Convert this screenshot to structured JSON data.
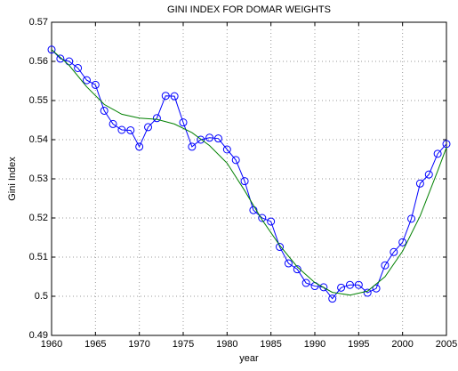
{
  "chart_data": {
    "type": "line",
    "title": "GINI INDEX FOR DOMAR WEIGHTS",
    "x_label": "year",
    "y_label": "Gini Index",
    "x": [
      1960,
      1961,
      1962,
      1963,
      1964,
      1965,
      1966,
      1967,
      1968,
      1969,
      1970,
      1971,
      1972,
      1973,
      1974,
      1975,
      1976,
      1977,
      1978,
      1979,
      1980,
      1981,
      1982,
      1983,
      1984,
      1985,
      1986,
      1987,
      1988,
      1989,
      1990,
      1991,
      1992,
      1993,
      1994,
      1995,
      1996,
      1997,
      1998,
      1999,
      2000,
      2001,
      2002,
      2003,
      2004,
      2005
    ],
    "series": [
      {
        "color": "#0000ff",
        "marker": "circle",
        "values": [
          0.563,
          0.5607,
          0.56,
          0.5583,
          0.5552,
          0.554,
          0.5474,
          0.544,
          0.5425,
          0.5424,
          0.5382,
          0.5432,
          0.5455,
          0.5512,
          0.5511,
          0.5444,
          0.5382,
          0.54,
          0.5405,
          0.5403,
          0.5375,
          0.5348,
          0.5294,
          0.522,
          0.52,
          0.5191,
          0.5126,
          0.5084,
          0.5069,
          0.5034,
          0.5026,
          0.5023,
          0.4994,
          0.5022,
          0.5029,
          0.5029,
          0.5009,
          0.502,
          0.5079,
          0.5113,
          0.5138,
          0.5198,
          0.5288,
          0.5311,
          0.5364,
          0.5389
        ]
      },
      {
        "color": "#008000",
        "x": [
          1960,
          1962,
          1964,
          1966,
          1968,
          1970,
          1972,
          1974,
          1976,
          1978,
          1980,
          1982,
          1984,
          1986,
          1988,
          1990,
          1992,
          1994,
          1996,
          1998,
          2000,
          2002,
          2004,
          2005
        ],
        "values": [
          0.563,
          0.559,
          0.5535,
          0.549,
          0.5465,
          0.5455,
          0.5452,
          0.544,
          0.5418,
          0.5385,
          0.534,
          0.527,
          0.5195,
          0.513,
          0.5075,
          0.5035,
          0.501,
          0.5003,
          0.5013,
          0.505,
          0.5115,
          0.5205,
          0.532,
          0.538
        ]
      }
    ],
    "xlim": [
      1960,
      2005
    ],
    "xticks": [
      1960,
      1965,
      1970,
      1975,
      1980,
      1985,
      1990,
      1995,
      2000,
      2005
    ],
    "ylim": [
      0.49,
      0.57
    ],
    "yticks": [
      0.49,
      0.5,
      0.51,
      0.52,
      0.53,
      0.54,
      0.55,
      0.56,
      0.57
    ],
    "grid": true
  }
}
